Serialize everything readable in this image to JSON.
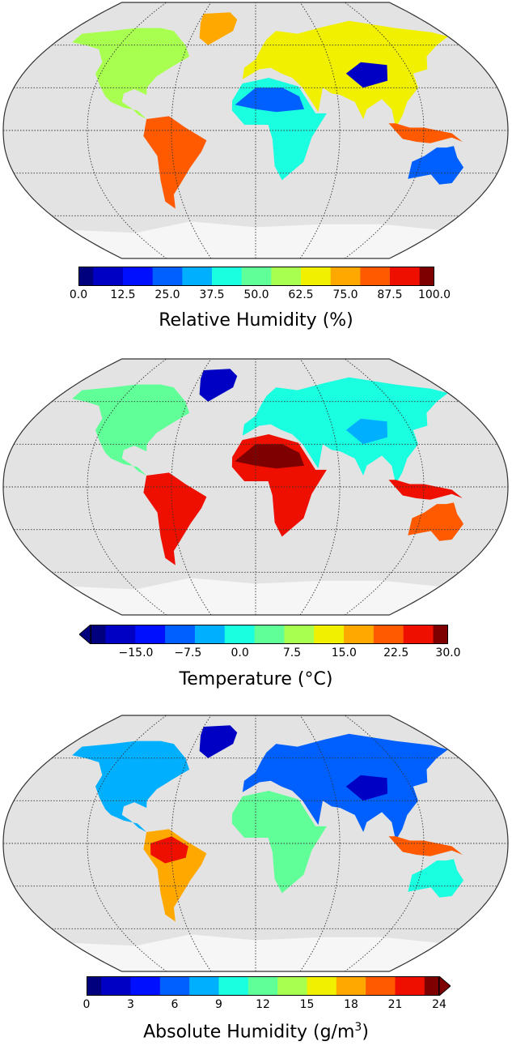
{
  "panels": [
    {
      "id": "rh",
      "colorbar": {
        "label": "Relative Humidity (%)",
        "ticks": [
          "0.0",
          "12.5",
          "25.0",
          "37.5",
          "50.0",
          "62.5",
          "75.0",
          "87.5",
          "100.0"
        ],
        "extend": "none"
      }
    },
    {
      "id": "temp",
      "colorbar": {
        "label": "Temperature (°C)",
        "ticks": [
          "−15.0",
          "−7.5",
          "0.0",
          "7.5",
          "15.0",
          "22.5",
          "30.0"
        ],
        "extend": "min"
      }
    },
    {
      "id": "ah",
      "colorbar": {
        "label_prefix": "Absolute Humidity (g/m",
        "label_sup": "3",
        "label_suffix": ")",
        "ticks": [
          "0",
          "3",
          "6",
          "9",
          "12",
          "15",
          "18",
          "21",
          "24"
        ],
        "extend": "max"
      }
    }
  ],
  "colors": {
    "ocean": "#e3e3e3",
    "grid": "#333333",
    "outline": "#333333",
    "colormap": [
      "#00007f",
      "#0000c4",
      "#0010ff",
      "#0060ff",
      "#00b0ff",
      "#1affe0",
      "#60ff98",
      "#a8ff50",
      "#f0f000",
      "#ffa800",
      "#ff5a00",
      "#ee0f00",
      "#7f0000"
    ]
  }
}
